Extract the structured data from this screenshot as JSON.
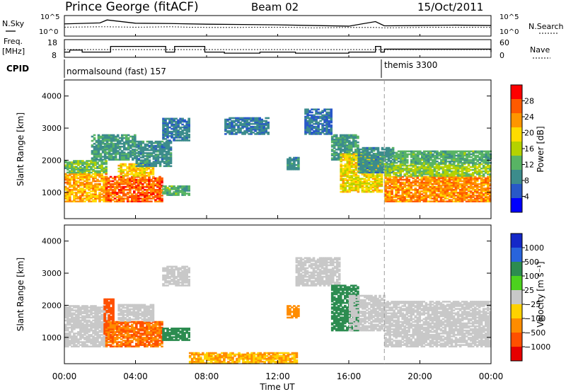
{
  "header": {
    "station": "Prince George (fitACF)",
    "beam": "Beam 02",
    "date": "15/Oct/2011"
  },
  "side_labels": {
    "nsky": "N.Sky",
    "nsearch": "N.Search",
    "freq_line1": "Freq.",
    "freq_line2": "[MHz]",
    "nave": "Nave",
    "cpid": "CPID"
  },
  "cpid_modes": [
    {
      "label": "normalsound (fast) 157",
      "start_hour": 0
    },
    {
      "label": "themis 3300",
      "start_hour": 18.0
    }
  ],
  "colors": {
    "power_scale": [
      "#0000ff",
      "#2858c8",
      "#3c8c8c",
      "#58b464",
      "#b4d200",
      "#ffdc00",
      "#ff9600",
      "#ff5a00",
      "#ff0000"
    ],
    "velocity_scale": [
      "#1428c8",
      "#2864dc",
      "#2c8c50",
      "#4cd21e",
      "#c8c8c8",
      "#ffd200",
      "#ff8c00",
      "#ff5000",
      "#e60000"
    ]
  },
  "chart_data": [
    {
      "type": "line",
      "title": "N.Sky / N.Search",
      "left_ticks": [
        "10^5",
        "10^0"
      ],
      "right_ticks": [
        "10^5",
        "10^0"
      ],
      "x": [
        0,
        2,
        2.4,
        4,
        6,
        8,
        10,
        12,
        14,
        16,
        17.5,
        18,
        20,
        22,
        24
      ],
      "series": [
        {
          "name": "N.Sky",
          "values": [
            3.1,
            3.4,
            4.3,
            3.3,
            3.2,
            3.0,
            2.9,
            2.8,
            2.6,
            2.4,
            3.8,
            2.5,
            2.6,
            2.7,
            2.6
          ]
        },
        {
          "name": "N.Search",
          "values": [
            2.1,
            2.2,
            2.2,
            2.1,
            2.2,
            2.0,
            2.0,
            2.1,
            1.9,
            2.0,
            2.0,
            1.9,
            2.0,
            2.1,
            2.0
          ]
        }
      ]
    },
    {
      "type": "line",
      "title": "Freq. [MHz] / Nave",
      "left_ticks": [
        "18",
        "8"
      ],
      "right_ticks": [
        "60",
        "0"
      ],
      "x": [
        0,
        0.3,
        1.0,
        2.3,
        2.6,
        5.7,
        6.2,
        7.9,
        9.0,
        11.0,
        13.0,
        16.0,
        17.5,
        17.8,
        18.0,
        24
      ],
      "series": [
        {
          "name": "Freq.",
          "values": [
            10.3,
            11.8,
            10.3,
            10.3,
            14.5,
            10.3,
            14.5,
            10.3,
            9.5,
            10.3,
            9.5,
            10.3,
            14.5,
            10.3,
            12.5,
            10.3
          ]
        },
        {
          "name": "Nave",
          "values": [
            25,
            25,
            25,
            25,
            25,
            25,
            25,
            25,
            25,
            25,
            25,
            25,
            25,
            25,
            25,
            25
          ]
        }
      ]
    },
    {
      "type": "heatmap",
      "title": "Power",
      "colorbar_label": "Power [dB]",
      "colorbar_ticks": [
        "4",
        "8",
        "12",
        "16",
        "20",
        "24",
        "28"
      ],
      "ylabel": "Slant Range [km]",
      "yticks": [
        "1000",
        "2000",
        "3000",
        "4000"
      ],
      "ylim": [
        180,
        4500
      ],
      "xlim": [
        0,
        24
      ],
      "regions": [
        {
          "t0": 0.0,
          "t1": 2.3,
          "r0": 700,
          "r1": 1600,
          "value": 22
        },
        {
          "t0": 0.0,
          "t1": 2.3,
          "r0": 1600,
          "r1": 2000,
          "value": 13
        },
        {
          "t0": 2.3,
          "t1": 5.5,
          "r0": 700,
          "r1": 1500,
          "value": 26
        },
        {
          "t0": 3.0,
          "t1": 5.0,
          "r0": 1500,
          "r1": 1900,
          "value": 20
        },
        {
          "t0": 5.5,
          "t1": 7.0,
          "r0": 900,
          "r1": 1200,
          "value": 12
        },
        {
          "t0": 1.5,
          "t1": 4.0,
          "r0": 2000,
          "r1": 2800,
          "value": 10
        },
        {
          "t0": 4.0,
          "t1": 6.0,
          "r0": 1800,
          "r1": 2600,
          "value": 9
        },
        {
          "t0": 5.5,
          "t1": 7.0,
          "r0": 2600,
          "r1": 3300,
          "value": 8
        },
        {
          "t0": 9.0,
          "t1": 11.5,
          "r0": 2800,
          "r1": 3300,
          "value": 8
        },
        {
          "t0": 12.5,
          "t1": 13.2,
          "r0": 1700,
          "r1": 2100,
          "value": 9
        },
        {
          "t0": 13.5,
          "t1": 15.0,
          "r0": 2800,
          "r1": 3600,
          "value": 7
        },
        {
          "t0": 15.0,
          "t1": 16.5,
          "r0": 2000,
          "r1": 2800,
          "value": 10
        },
        {
          "t0": 15.5,
          "t1": 17.8,
          "r0": 1000,
          "r1": 2200,
          "value": 19
        },
        {
          "t0": 16.5,
          "t1": 18.5,
          "r0": 1600,
          "r1": 2400,
          "value": 9
        },
        {
          "t0": 18.0,
          "t1": 24.0,
          "r0": 700,
          "r1": 1500,
          "value": 24
        },
        {
          "t0": 18.0,
          "t1": 24.0,
          "r0": 1500,
          "r1": 1900,
          "value": 15
        },
        {
          "t0": 18.5,
          "t1": 24.0,
          "r0": 1900,
          "r1": 2300,
          "value": 12
        }
      ]
    },
    {
      "type": "heatmap",
      "title": "Velocity",
      "colorbar_label": "Velocity [m s⁻¹]",
      "colorbar_ticks": [
        "1000",
        "500",
        "100",
        "25",
        "−25",
        "−100",
        "−500",
        "−1000"
      ],
      "ylabel": "Slant Range [km]",
      "yticks": [
        "1000",
        "2000",
        "3000",
        "4000"
      ],
      "ylim": [
        180,
        4500
      ],
      "xlim": [
        0,
        24
      ],
      "xticks": [
        "00:00",
        "04:00",
        "08:00",
        "12:00",
        "16:00",
        "20:00",
        "00:00"
      ],
      "xlabel": "Time UT",
      "regions": [
        {
          "t0": 0.0,
          "t1": 2.3,
          "r0": 700,
          "r1": 2000,
          "value": 0
        },
        {
          "t0": 2.2,
          "t1": 2.8,
          "r0": 1000,
          "r1": 2200,
          "value": -600
        },
        {
          "t0": 2.3,
          "t1": 5.5,
          "r0": 700,
          "r1": 1500,
          "value": -300
        },
        {
          "t0": 3.0,
          "t1": 5.0,
          "r0": 1500,
          "r1": 2000,
          "value": 0
        },
        {
          "t0": 5.5,
          "t1": 7.0,
          "r0": 900,
          "r1": 1300,
          "value": 150
        },
        {
          "t0": 5.5,
          "t1": 7.0,
          "r0": 2600,
          "r1": 3200,
          "value": 0
        },
        {
          "t0": 7.0,
          "t1": 13.0,
          "r0": 180,
          "r1": 500,
          "value": -60
        },
        {
          "t0": 12.5,
          "t1": 13.2,
          "r0": 1600,
          "r1": 2000,
          "value": -200
        },
        {
          "t0": 13.0,
          "t1": 15.5,
          "r0": 2600,
          "r1": 3500,
          "value": 0
        },
        {
          "t0": 15.0,
          "t1": 16.5,
          "r0": 1200,
          "r1": 2600,
          "value": 150
        },
        {
          "t0": 16.0,
          "t1": 18.0,
          "r0": 1200,
          "r1": 2300,
          "value": 0
        },
        {
          "t0": 18.0,
          "t1": 24.0,
          "r0": 700,
          "r1": 2100,
          "value": 0
        }
      ]
    }
  ]
}
